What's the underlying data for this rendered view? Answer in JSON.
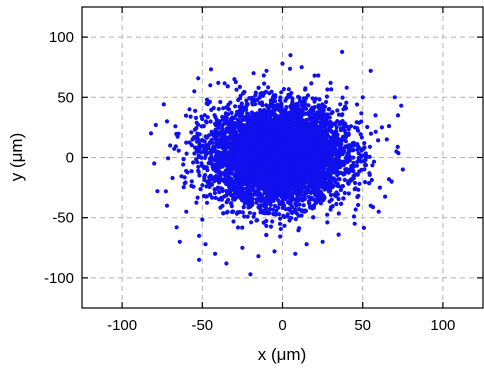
{
  "chart_data": {
    "type": "scatter",
    "title": "",
    "xlabel": "x (μm)",
    "ylabel": "y (μm)",
    "xlim": [
      -125,
      125
    ],
    "ylim": [
      -125,
      125
    ],
    "xticks": [
      -100,
      -50,
      0,
      50,
      100
    ],
    "yticks": [
      -100,
      -50,
      0,
      50,
      100
    ],
    "grid": true,
    "legend": "none",
    "series": [
      {
        "color": "#1010ee",
        "distribution": "gaussian-2d",
        "center": [
          -3,
          2
        ],
        "sigma": [
          21,
          20
        ],
        "point_count": 6000,
        "points": [
          [
            -82,
            20
          ],
          [
            -79,
            27
          ],
          [
            -78,
            -28
          ],
          [
            -80,
            -5
          ],
          [
            -72,
            -40
          ],
          [
            -70,
            10
          ],
          [
            -66,
            -58
          ],
          [
            -64,
            -70
          ],
          [
            -60,
            -45
          ],
          [
            -58,
            40
          ],
          [
            -55,
            55
          ],
          [
            -52,
            -65
          ],
          [
            -48,
            -72
          ],
          [
            -45,
            60
          ],
          [
            -42,
            -80
          ],
          [
            -40,
            62
          ],
          [
            -35,
            -88
          ],
          [
            -30,
            65
          ],
          [
            -25,
            -75
          ],
          [
            -20,
            -97
          ],
          [
            -18,
            70
          ],
          [
            -15,
            -82
          ],
          [
            -10,
            72
          ],
          [
            -5,
            -78
          ],
          [
            0,
            78
          ],
          [
            5,
            85
          ],
          [
            8,
            -80
          ],
          [
            12,
            75
          ],
          [
            15,
            -72
          ],
          [
            20,
            68
          ],
          [
            25,
            -70
          ],
          [
            30,
            62
          ],
          [
            35,
            -64
          ],
          [
            40,
            58
          ],
          [
            45,
            -55
          ],
          [
            50,
            50
          ],
          [
            55,
            -40
          ],
          [
            58,
            35
          ],
          [
            60,
            -45
          ],
          [
            62,
            25
          ],
          [
            65,
            15
          ],
          [
            68,
            -20
          ],
          [
            70,
            50
          ],
          [
            71,
            5
          ],
          [
            72,
            35
          ],
          [
            75,
            -10
          ],
          [
            74,
            43
          ],
          [
            -52,
            -85
          ],
          [
            55,
            72
          ],
          [
            -72,
            30
          ]
        ]
      }
    ]
  }
}
